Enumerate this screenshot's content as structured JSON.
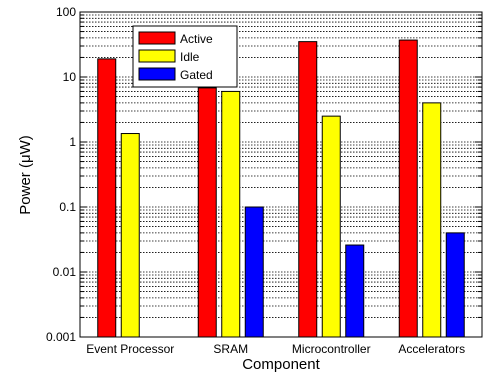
{
  "chart_data": {
    "type": "bar",
    "title": "",
    "xlabel": "Component",
    "ylabel": "Power (μW)",
    "yscale": "log",
    "ylim": [
      0.001,
      100
    ],
    "grid": true,
    "legend_position": "top-left",
    "yticks": [
      {
        "value": 0.001,
        "label": "0.001"
      },
      {
        "value": 0.01,
        "label": "0.01"
      },
      {
        "value": 0.1,
        "label": "0.1"
      },
      {
        "value": 1,
        "label": "1"
      },
      {
        "value": 10,
        "label": "10"
      },
      {
        "value": 100,
        "label": "100"
      }
    ],
    "categories": [
      "Event Processor",
      "SRAM",
      "Microcontroller",
      "Accelerators"
    ],
    "series": [
      {
        "name": "Active",
        "color": "#ff0000",
        "values": [
          19,
          6.8,
          35,
          37
        ]
      },
      {
        "name": "Idle",
        "color": "#ffff00",
        "values": [
          1.35,
          6.0,
          2.5,
          4.0
        ]
      },
      {
        "name": "Gated",
        "color": "#0000ff",
        "values": [
          null,
          0.1,
          0.026,
          0.04
        ]
      }
    ]
  }
}
